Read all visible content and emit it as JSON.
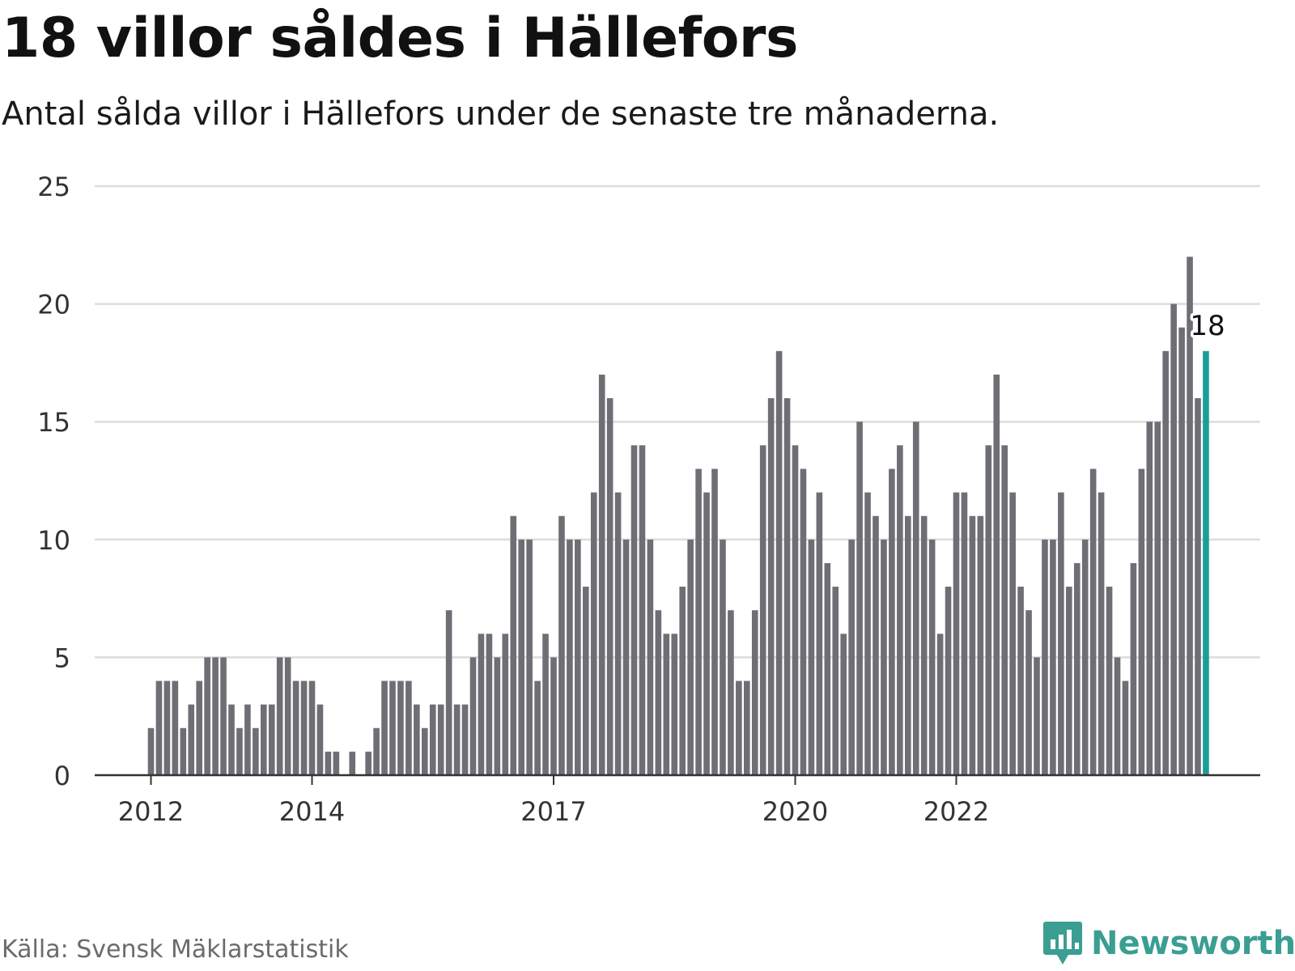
{
  "title": "18 villor såldes i Hällefors",
  "subtitle": "Antal sålda villor i Hällefors under de senaste tre månaderna.",
  "source": "Källa: Svensk Mäklarstatistik",
  "brand": {
    "name": "Newsworthy",
    "icon": "newsworthy-logo-icon",
    "color": "#3a9e93"
  },
  "colors": {
    "bar": "#6e6e74",
    "highlight": "#1a9e97",
    "grid": "#dcdcdc",
    "axis": "#333333"
  },
  "chart_data": {
    "type": "bar",
    "x_start": "2012-01",
    "x_step": "month",
    "ylim": [
      0,
      25
    ],
    "yticks": [
      0,
      5,
      10,
      15,
      20,
      25
    ],
    "xticks": [
      {
        "label": "2012",
        "index": 0
      },
      {
        "label": "2014",
        "index": 20
      },
      {
        "label": "2017",
        "index": 50
      },
      {
        "label": "2020",
        "index": 80
      },
      {
        "label": "2022",
        "index": 100
      }
    ],
    "values": [
      2,
      4,
      4,
      4,
      2,
      3,
      4,
      5,
      5,
      5,
      3,
      2,
      3,
      2,
      3,
      3,
      5,
      5,
      4,
      4,
      4,
      3,
      1,
      1,
      0,
      1,
      0,
      1,
      2,
      4,
      4,
      4,
      4,
      3,
      2,
      3,
      3,
      7,
      3,
      3,
      5,
      6,
      6,
      5,
      6,
      11,
      10,
      10,
      4,
      6,
      5,
      11,
      10,
      10,
      8,
      12,
      17,
      16,
      12,
      10,
      14,
      14,
      10,
      7,
      6,
      6,
      8,
      10,
      13,
      12,
      13,
      10,
      7,
      4,
      4,
      7,
      14,
      16,
      18,
      16,
      14,
      13,
      10,
      12,
      9,
      8,
      6,
      10,
      15,
      12,
      11,
      10,
      13,
      14,
      11,
      15,
      11,
      10,
      6,
      8,
      12,
      12,
      11,
      11,
      14,
      17,
      14,
      12,
      8,
      7,
      5,
      10,
      10,
      12,
      8,
      9,
      10,
      13,
      12,
      8,
      5,
      4,
      9,
      13,
      15,
      15,
      18,
      20,
      19,
      22,
      16,
      18
    ],
    "highlight": {
      "index": 131,
      "label": "18"
    },
    "grid": true,
    "legend": "none"
  }
}
